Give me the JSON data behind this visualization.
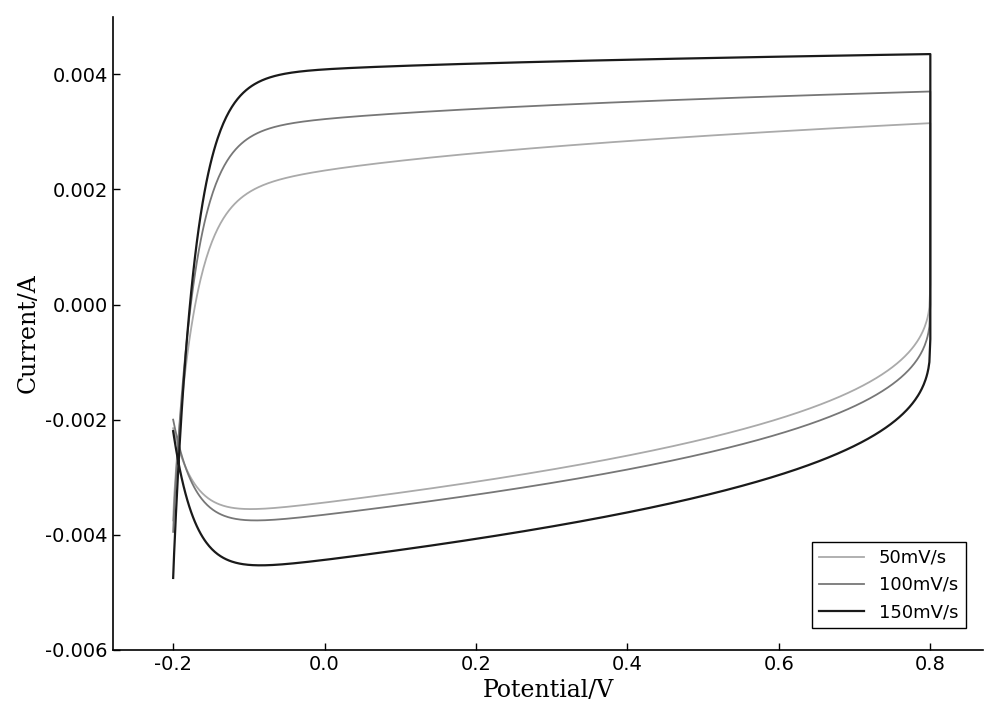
{
  "xlabel": "Potential/V",
  "ylabel": "Current/A",
  "xlim": [
    -0.28,
    0.87
  ],
  "ylim": [
    -0.006,
    0.005
  ],
  "xticks": [
    -0.2,
    0.0,
    0.2,
    0.4,
    0.6,
    0.8
  ],
  "yticks": [
    -0.006,
    -0.004,
    -0.002,
    0.0,
    0.002,
    0.004
  ],
  "background_color": "#ffffff",
  "curves": [
    {
      "label": "50mV/s",
      "color": "#aaaaaa",
      "linewidth": 1.3,
      "I_fwd_plateau": 0.00125,
      "I_rev_plateau": -0.00215,
      "I_fwd_end": 0.00315,
      "I_rev_end": -0.00375,
      "I_rev_start": 0.00195
    },
    {
      "label": "100mV/s",
      "color": "#777777",
      "linewidth": 1.3,
      "I_fwd_plateau": 0.0026,
      "I_rev_plateau": -0.002,
      "I_fwd_end": 0.0037,
      "I_rev_end": -0.00395,
      "I_rev_start": 0.00195
    },
    {
      "label": "150mV/s",
      "color": "#1a1a1a",
      "linewidth": 1.6,
      "I_fwd_plateau": 0.00375,
      "I_rev_plateau": -0.0022,
      "I_fwd_end": 0.00435,
      "I_rev_end": -0.00475,
      "I_rev_start": 0.00195
    }
  ],
  "fontsize_label": 17,
  "fontsize_tick": 14,
  "fontsize_legend": 13
}
